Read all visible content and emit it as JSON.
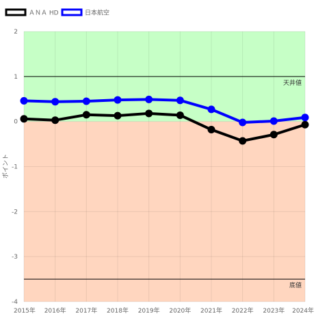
{
  "chart_data": {
    "type": "line",
    "title": "",
    "xlabel": "",
    "ylabel": "ポイント",
    "ylim": [
      -4,
      2
    ],
    "yticks": [
      2,
      1,
      0,
      -1,
      -2,
      -3,
      -4
    ],
    "grid": true,
    "legend_position": "top-left",
    "categories": [
      "2015年",
      "2016年",
      "2017年",
      "2018年",
      "2019年",
      "2020年",
      "2021年",
      "2022年",
      "2023年",
      "2024年"
    ],
    "series": [
      {
        "name": "ＡＮＡ HD",
        "color": "#000000",
        "values": [
          0.06,
          0.03,
          0.15,
          0.13,
          0.18,
          0.14,
          -0.18,
          -0.43,
          -0.29,
          -0.07
        ]
      },
      {
        "name": "日本航空",
        "color": "#0000ff",
        "values": [
          0.46,
          0.44,
          0.45,
          0.48,
          0.49,
          0.47,
          0.27,
          -0.02,
          0.01,
          0.09
        ]
      }
    ],
    "bands": [
      {
        "from": 0,
        "to": 2,
        "color": "#c6ffc6"
      },
      {
        "from": -4,
        "to": 0,
        "color": "#ffd6bf"
      }
    ],
    "reference_lines": [
      {
        "value": 1,
        "label": "天井値",
        "color": "#000000"
      },
      {
        "value": -3.5,
        "label": "底値",
        "color": "#000000"
      }
    ]
  }
}
